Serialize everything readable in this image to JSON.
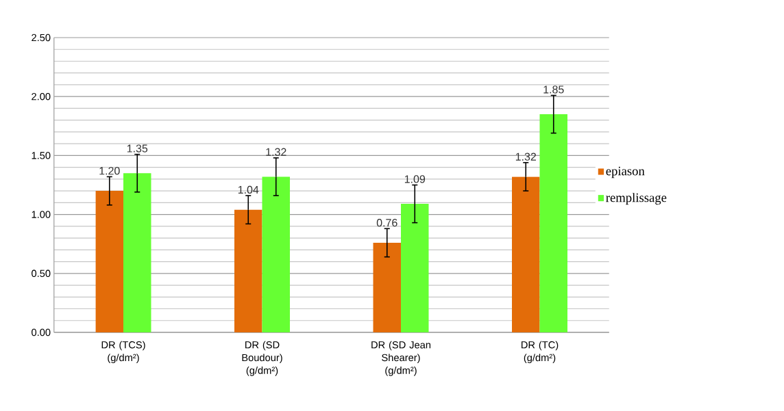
{
  "chart_data": {
    "type": "bar",
    "categories": [
      "DR (TCS) (g/dm²)",
      "DR (SD Boudour) (g/dm²)",
      "DR (SD Jean Shearer) (g/dm²)",
      "DR (TC) (g/dm²)"
    ],
    "series": [
      {
        "name": "epiason",
        "color": "#e36c09",
        "values": [
          1.2,
          1.04,
          0.76,
          1.32
        ],
        "errors": [
          0.12,
          0.12,
          0.12,
          0.12
        ],
        "value_labels": [
          "1.20",
          "1.04",
          "0.76",
          "1.32"
        ]
      },
      {
        "name": "remplissage",
        "color": "#66ff33",
        "values": [
          1.35,
          1.32,
          1.09,
          1.85
        ],
        "errors": [
          0.16,
          0.16,
          0.16,
          0.16
        ],
        "value_labels": [
          "1.35",
          "1.32",
          "1.09",
          "1.85"
        ]
      }
    ],
    "ylim": [
      0,
      2.5
    ],
    "yticks": [
      {
        "value": 0,
        "label": "0.00"
      },
      {
        "value": 0.5,
        "label": "0.50"
      },
      {
        "value": 1.0,
        "label": "1.00"
      },
      {
        "value": 1.5,
        "label": "1.50"
      },
      {
        "value": 2.0,
        "label": "2.00"
      },
      {
        "value": 2.5,
        "label": "2.50"
      }
    ],
    "grid": "y",
    "legend": "right"
  }
}
